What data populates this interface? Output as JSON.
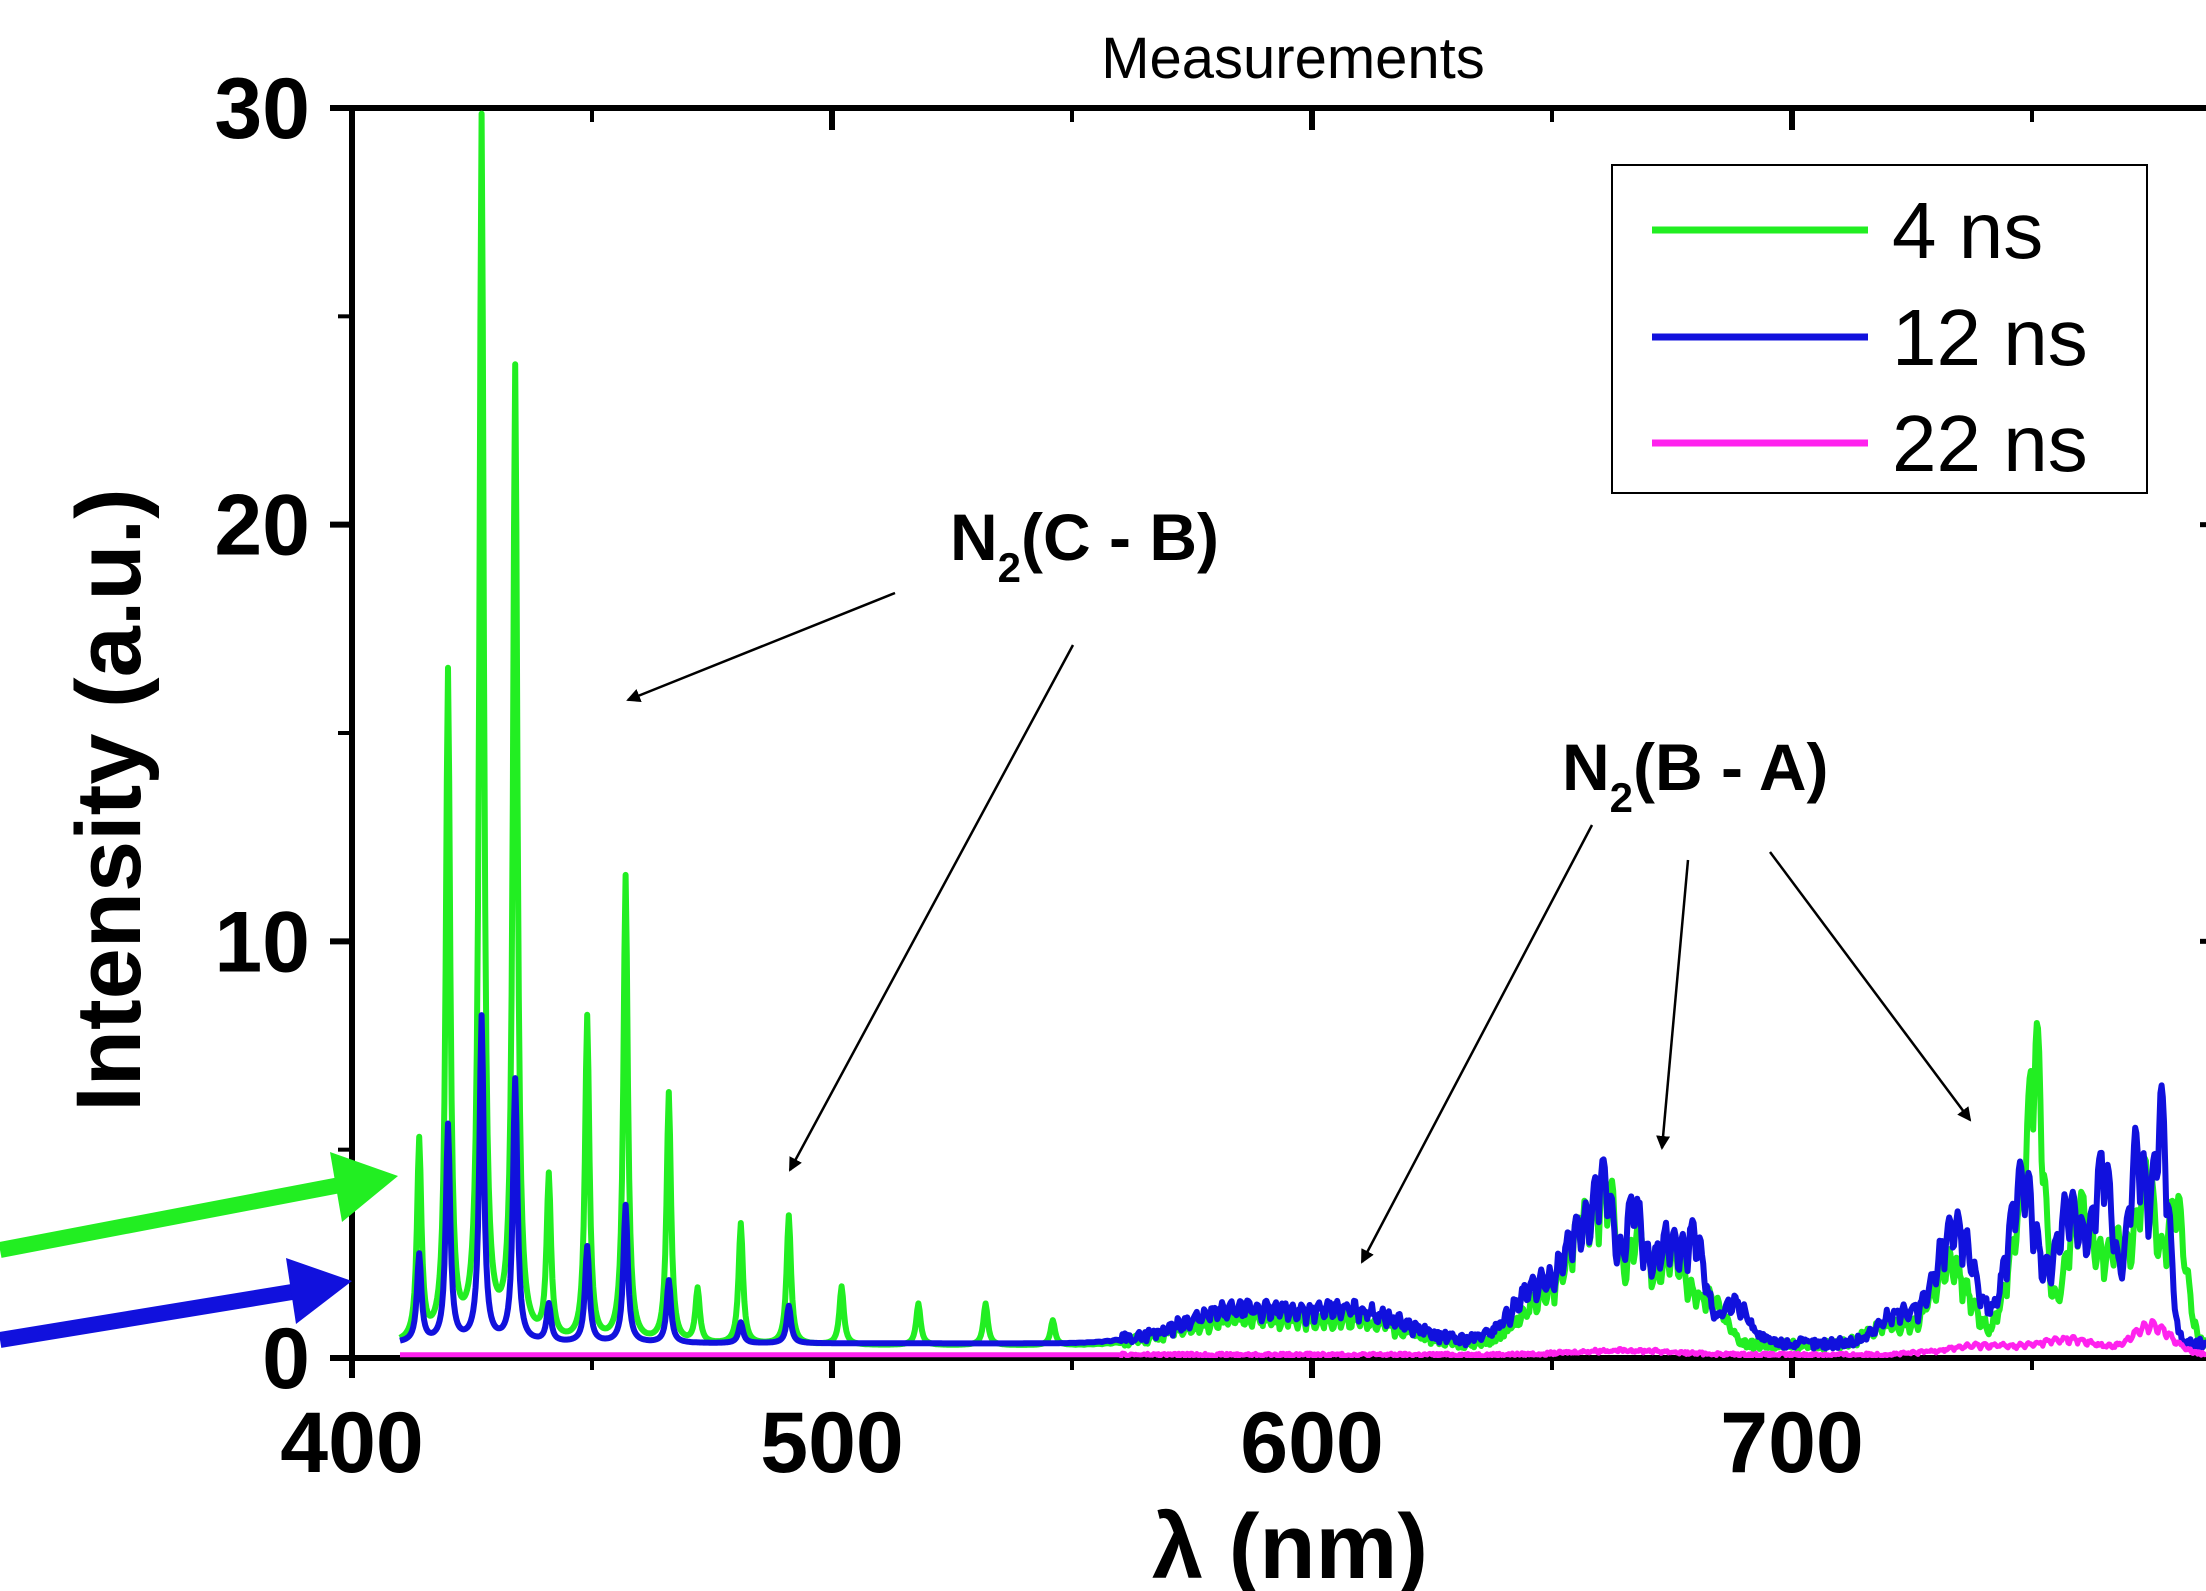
{
  "chart_data": {
    "type": "line",
    "title": "Measurements",
    "xlabel": "λ (nm)",
    "ylabel": "Intensity (a.u.)",
    "xlim": [
      400,
      790
    ],
    "ylim": [
      0,
      30
    ],
    "x_ticks": [
      400,
      500,
      600,
      700
    ],
    "x_tick_labels": [
      "400",
      "500",
      "600",
      "700"
    ],
    "y_ticks": [
      0,
      10,
      20,
      30
    ],
    "y_tick_labels": [
      "0",
      "10",
      "20",
      "30"
    ],
    "legend": {
      "placement": "top-right"
    },
    "colors": {
      "4 ns": "#22ee22",
      "12 ns": "#1111dd",
      "22 ns": "#ff22ee"
    },
    "series": [
      {
        "name": "4 ns",
        "color": "#22ee22",
        "baseline": 0.3,
        "peaks": [
          [
            414,
            4.8
          ],
          [
            420,
            16.0
          ],
          [
            427,
            29.3
          ],
          [
            434,
            23.3
          ],
          [
            441,
            3.9
          ],
          [
            449,
            7.8
          ],
          [
            457,
            11.2
          ],
          [
            466,
            6.0
          ],
          [
            472,
            1.3
          ],
          [
            481,
            2.9
          ],
          [
            491,
            3.1
          ],
          [
            502,
            1.4
          ],
          [
            518,
            1.0
          ],
          [
            532,
            1.0
          ],
          [
            546,
            0.6
          ]
        ],
        "bands": [
          [
            585,
            0.7,
            12
          ],
          [
            610,
            0.6,
            10
          ],
          [
            650,
            1.4,
            6
          ],
          [
            657,
            2.6,
            3
          ],
          [
            662,
            3.3,
            2
          ],
          [
            668,
            2.9,
            2
          ],
          [
            675,
            2.5,
            3
          ],
          [
            683,
            1.2,
            3
          ],
          [
            720,
            0.6,
            4
          ],
          [
            733,
            2.2,
            4
          ],
          [
            748,
            3.4,
            3
          ],
          [
            751,
            5.8,
            1.5
          ],
          [
            760,
            3.6,
            3
          ],
          [
            768,
            2.6,
            3
          ],
          [
            774,
            4.2,
            2
          ],
          [
            780,
            3.8,
            2
          ]
        ]
      },
      {
        "name": "12 ns",
        "color": "#1111dd",
        "baseline": 0.35,
        "peaks": [
          [
            414,
            2.1
          ],
          [
            420,
            5.2
          ],
          [
            427,
            7.8
          ],
          [
            434,
            6.3
          ],
          [
            441,
            0.9
          ],
          [
            449,
            2.3
          ],
          [
            457,
            3.3
          ],
          [
            466,
            1.5
          ],
          [
            481,
            0.5
          ],
          [
            491,
            0.9
          ]
        ],
        "bands": [
          [
            585,
            0.9,
            12
          ],
          [
            610,
            0.8,
            10
          ],
          [
            648,
            1.6,
            6
          ],
          [
            656,
            2.4,
            3
          ],
          [
            661,
            3.7,
            2
          ],
          [
            667,
            3.5,
            2
          ],
          [
            674,
            2.8,
            3
          ],
          [
            680,
            2.5,
            2
          ],
          [
            688,
            1.1,
            3
          ],
          [
            722,
            0.8,
            4
          ],
          [
            734,
            3.2,
            4
          ],
          [
            748,
            4.4,
            3
          ],
          [
            758,
            3.7,
            3
          ],
          [
            765,
            4.6,
            2
          ],
          [
            772,
            5.2,
            2
          ],
          [
            777,
            6.0,
            1.5
          ]
        ]
      },
      {
        "name": "22 ns",
        "color": "#ff22ee",
        "baseline": 0.08,
        "peaks": [],
        "bands": [
          [
            665,
            0.12,
            10
          ],
          [
            740,
            0.25,
            8
          ],
          [
            758,
            0.4,
            6
          ],
          [
            775,
            0.8,
            4
          ]
        ]
      }
    ],
    "annotations": [
      {
        "label": "N",
        "subscript": "2",
        "suffix": "(C - B)"
      },
      {
        "label": "N",
        "subscript": "2",
        "suffix": "(B - A)"
      }
    ]
  }
}
